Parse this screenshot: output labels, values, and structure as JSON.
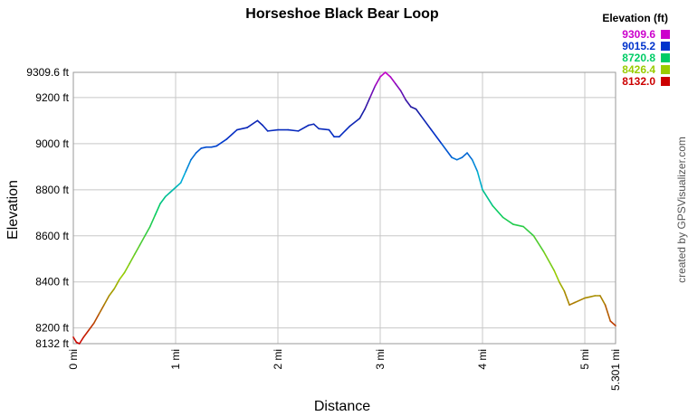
{
  "chart_data": {
    "type": "line",
    "title": "Horseshoe  Black Bear Loop",
    "xlabel": "Distance",
    "ylabel": "Elevation",
    "xlim": [
      0,
      5.301
    ],
    "ylim": [
      8132.0,
      9309.6
    ],
    "x_ticks": [
      {
        "value": 0,
        "label": "0 mi"
      },
      {
        "value": 1,
        "label": "1 mi"
      },
      {
        "value": 2,
        "label": "2 mi"
      },
      {
        "value": 3,
        "label": "3 mi"
      },
      {
        "value": 4,
        "label": "4 mi"
      },
      {
        "value": 5,
        "label": "5 mi"
      },
      {
        "value": 5.301,
        "label": "5.301 mi"
      }
    ],
    "y_ticks": [
      {
        "value": 8132.0,
        "label": "8132 ft"
      },
      {
        "value": 8200,
        "label": "8200 ft"
      },
      {
        "value": 8400,
        "label": "8400 ft"
      },
      {
        "value": 8600,
        "label": "8600 ft"
      },
      {
        "value": 8800,
        "label": "8800 ft"
      },
      {
        "value": 9000,
        "label": "9000 ft"
      },
      {
        "value": 9200,
        "label": "9200 ft"
      },
      {
        "value": 9309.6,
        "label": "9309.6 ft"
      }
    ],
    "grid": true,
    "legend": {
      "title": "Elevation (ft)",
      "position": "top-right",
      "entries": [
        {
          "label": "9309.6",
          "color": "#cc00cc"
        },
        {
          "label": "9015.2",
          "color": "#0033cc"
        },
        {
          "label": "8720.8",
          "color": "#00cc66"
        },
        {
          "label": "8426.4",
          "color": "#99cc00"
        },
        {
          "label": "8132.0",
          "color": "#cc0000"
        }
      ]
    },
    "color_stops": [
      {
        "value": 8132.0,
        "color": "#cc0000"
      },
      {
        "value": 8426.4,
        "color": "#99cc00"
      },
      {
        "value": 8720.8,
        "color": "#00cc66"
      },
      {
        "value": 8860.0,
        "color": "#00aadd"
      },
      {
        "value": 9015.2,
        "color": "#0033cc"
      },
      {
        "value": 9150.0,
        "color": "#1a1aa0"
      },
      {
        "value": 9309.6,
        "color": "#cc00cc"
      }
    ],
    "series": [
      {
        "x": [
          0.0,
          0.03,
          0.06,
          0.1,
          0.15,
          0.2,
          0.25,
          0.3,
          0.35,
          0.4,
          0.45,
          0.5,
          0.55,
          0.6,
          0.65,
          0.7,
          0.75,
          0.8,
          0.85,
          0.9,
          0.95,
          1.0,
          1.05,
          1.1,
          1.15,
          1.2,
          1.25,
          1.3,
          1.35,
          1.4,
          1.5,
          1.6,
          1.7,
          1.8,
          1.85,
          1.9,
          2.0,
          2.1,
          2.2,
          2.3,
          2.35,
          2.4,
          2.5,
          2.55,
          2.6,
          2.7,
          2.8,
          2.85,
          2.9,
          2.95,
          3.0,
          3.05,
          3.1,
          3.15,
          3.2,
          3.25,
          3.3,
          3.35,
          3.4,
          3.5,
          3.6,
          3.7,
          3.75,
          3.8,
          3.85,
          3.9,
          3.95,
          4.0,
          4.1,
          4.2,
          4.3,
          4.4,
          4.5,
          4.6,
          4.7,
          4.75,
          4.8,
          4.85,
          4.9,
          5.0,
          5.05,
          5.1,
          5.15,
          5.2,
          5.25,
          5.301
        ],
        "y": [
          8160,
          8138,
          8132,
          8160,
          8190,
          8220,
          8260,
          8300,
          8340,
          8370,
          8410,
          8440,
          8480,
          8520,
          8560,
          8600,
          8640,
          8690,
          8740,
          8770,
          8790,
          8810,
          8830,
          8880,
          8930,
          8960,
          8980,
          8985,
          8985,
          8990,
          9020,
          9060,
          9070,
          9100,
          9080,
          9055,
          9060,
          9060,
          9055,
          9080,
          9085,
          9065,
          9060,
          9030,
          9030,
          9075,
          9110,
          9150,
          9200,
          9250,
          9290,
          9309.6,
          9290,
          9260,
          9230,
          9190,
          9160,
          9150,
          9120,
          9060,
          9000,
          8940,
          8930,
          8940,
          8960,
          8930,
          8880,
          8800,
          8730,
          8680,
          8650,
          8640,
          8600,
          8530,
          8450,
          8400,
          8360,
          8300,
          8310,
          8330,
          8335,
          8340,
          8340,
          8300,
          8230,
          8210
        ]
      }
    ]
  },
  "credit": "created by GPSVisualizer.com"
}
